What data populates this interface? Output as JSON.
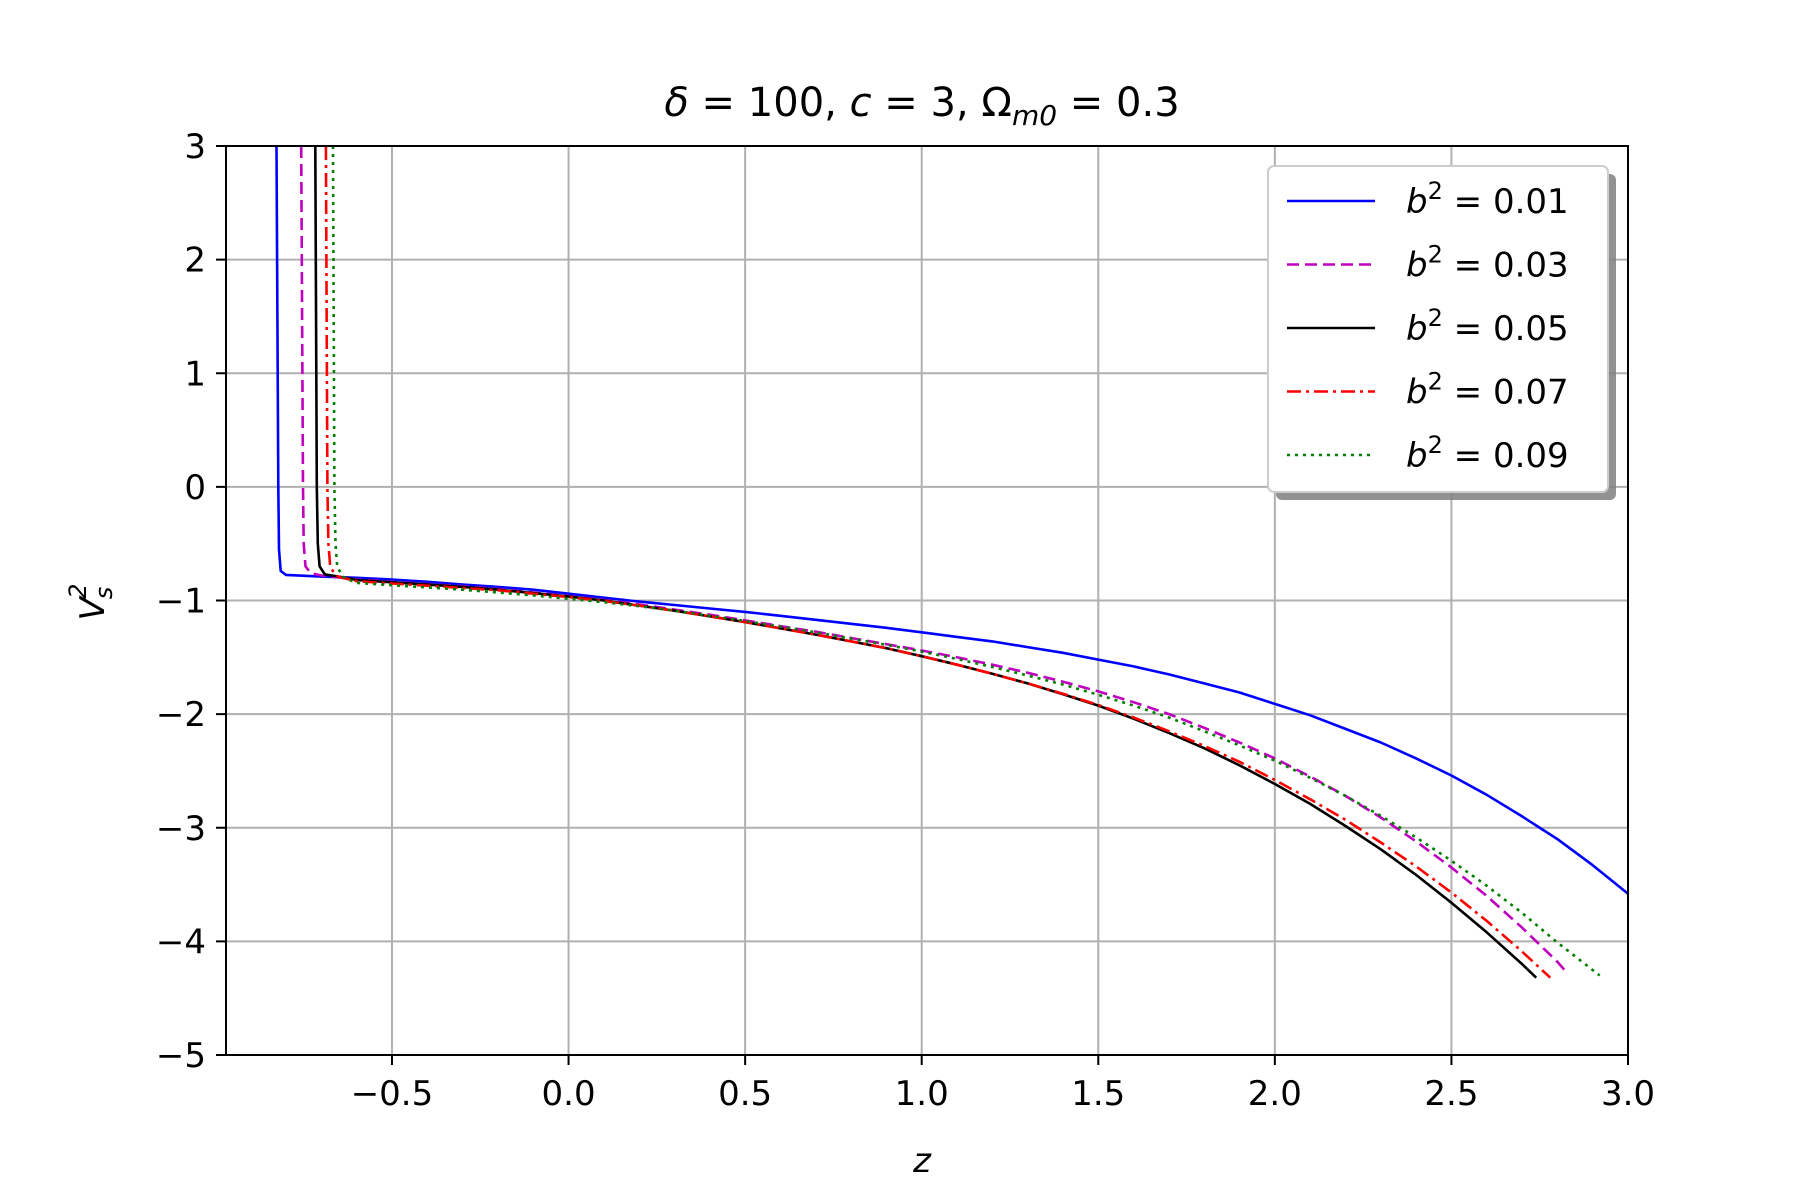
{
  "chart_data": {
    "type": "line",
    "title": "δ = 100, c = 3, Ω_m0 = 0.3",
    "title_parts": {
      "delta": "δ",
      "delta_eq": " = 100, ",
      "c": "c",
      "c_eq": " = 3, ",
      "omega": "Ω",
      "omega_sub": "m0",
      "omega_eq": " = 0.3"
    },
    "xlabel": "z",
    "ylabel": "V_s^2",
    "ylabel_parts": {
      "base": "V",
      "sub": "s",
      "sup": "2"
    },
    "xlim": [
      -0.97,
      3.0
    ],
    "ylim": [
      -5,
      3
    ],
    "xticks": [
      -0.5,
      0.0,
      0.5,
      1.0,
      1.5,
      2.0,
      2.5,
      3.0
    ],
    "xtick_labels": [
      "−0.5",
      "0.0",
      "0.5",
      "1.0",
      "1.5",
      "2.0",
      "2.5",
      "3.0"
    ],
    "yticks": [
      -5,
      -4,
      -3,
      -2,
      -1,
      0,
      1,
      2,
      3
    ],
    "ytick_labels": [
      "−5",
      "−4",
      "−3",
      "−2",
      "−1",
      "0",
      "1",
      "2",
      "3"
    ],
    "grid": true,
    "legend_position": "top-right",
    "series": [
      {
        "name": "b² = 0.01",
        "legend_prefix": "b",
        "legend_sup": "2",
        "legend_value": " = 0.01",
        "color": "#0000ff",
        "dash": "solid",
        "x": [
          -0.827,
          -0.822,
          -0.82,
          -0.815,
          -0.8,
          -0.7,
          -0.6,
          -0.5,
          -0.4,
          -0.3,
          -0.2,
          -0.1,
          0.0,
          0.1,
          0.2,
          0.3,
          0.4,
          0.5,
          0.6,
          0.7,
          0.8,
          0.9,
          1.0,
          1.1,
          1.2,
          1.3,
          1.4,
          1.5,
          1.6,
          1.7,
          1.8,
          1.9,
          2.0,
          2.1,
          2.2,
          2.3,
          2.4,
          2.5,
          2.6,
          2.7,
          2.8,
          2.9,
          3.0
        ],
        "y": [
          3.0,
          0.0,
          -0.55,
          -0.74,
          -0.775,
          -0.79,
          -0.8,
          -0.815,
          -0.835,
          -0.86,
          -0.88,
          -0.905,
          -0.94,
          -0.975,
          -1.01,
          -1.04,
          -1.07,
          -1.1,
          -1.135,
          -1.17,
          -1.205,
          -1.24,
          -1.28,
          -1.32,
          -1.36,
          -1.41,
          -1.46,
          -1.52,
          -1.58,
          -1.65,
          -1.73,
          -1.81,
          -1.91,
          -2.01,
          -2.13,
          -2.25,
          -2.39,
          -2.54,
          -2.71,
          -2.9,
          -3.1,
          -3.33,
          -3.58
        ]
      },
      {
        "name": "b² = 0.03",
        "legend_prefix": "b",
        "legend_sup": "2",
        "legend_value": " = 0.03",
        "color": "#bf00bf",
        "dash": "dashed",
        "x": [
          -0.757,
          -0.752,
          -0.75,
          -0.745,
          -0.73,
          -0.7,
          -0.6,
          -0.5,
          -0.4,
          -0.3,
          -0.2,
          -0.1,
          0.0,
          0.1,
          0.2,
          0.3,
          0.4,
          0.5,
          0.6,
          0.7,
          0.8,
          0.9,
          1.0,
          1.1,
          1.2,
          1.3,
          1.4,
          1.5,
          1.6,
          1.7,
          1.8,
          1.9,
          2.0,
          2.1,
          2.2,
          2.3,
          2.4,
          2.5,
          2.6,
          2.7,
          2.8,
          2.82
        ],
        "y": [
          3.0,
          0.0,
          -0.5,
          -0.7,
          -0.76,
          -0.78,
          -0.815,
          -0.835,
          -0.855,
          -0.875,
          -0.9,
          -0.93,
          -0.96,
          -0.995,
          -1.035,
          -1.08,
          -1.125,
          -1.175,
          -1.225,
          -1.275,
          -1.33,
          -1.385,
          -1.44,
          -1.5,
          -1.565,
          -1.635,
          -1.715,
          -1.8,
          -1.895,
          -2.0,
          -2.12,
          -2.25,
          -2.39,
          -2.55,
          -2.72,
          -2.91,
          -3.12,
          -3.35,
          -3.6,
          -3.88,
          -4.18,
          -4.25
        ]
      },
      {
        "name": "b² = 0.05",
        "legend_prefix": "b",
        "legend_sup": "2",
        "legend_value": " = 0.05",
        "color": "#000000",
        "dash": "solid",
        "x": [
          -0.717,
          -0.713,
          -0.71,
          -0.705,
          -0.69,
          -0.65,
          -0.6,
          -0.5,
          -0.4,
          -0.3,
          -0.2,
          -0.1,
          0.0,
          0.1,
          0.2,
          0.3,
          0.4,
          0.5,
          0.6,
          0.7,
          0.8,
          0.9,
          1.0,
          1.1,
          1.2,
          1.3,
          1.4,
          1.5,
          1.6,
          1.7,
          1.8,
          1.9,
          2.0,
          2.1,
          2.2,
          2.3,
          2.4,
          2.5,
          2.6,
          2.7,
          2.74
        ],
        "y": [
          3.0,
          0.0,
          -0.5,
          -0.7,
          -0.77,
          -0.79,
          -0.82,
          -0.84,
          -0.86,
          -0.88,
          -0.905,
          -0.935,
          -0.965,
          -1.0,
          -1.045,
          -1.09,
          -1.14,
          -1.19,
          -1.245,
          -1.3,
          -1.36,
          -1.42,
          -1.49,
          -1.565,
          -1.645,
          -1.73,
          -1.825,
          -1.925,
          -2.04,
          -2.165,
          -2.3,
          -2.45,
          -2.615,
          -2.79,
          -2.985,
          -3.19,
          -3.415,
          -3.66,
          -3.92,
          -4.2,
          -4.32
        ]
      },
      {
        "name": "b² = 0.07",
        "legend_prefix": "b",
        "legend_sup": "2",
        "legend_value": " = 0.07",
        "color": "#ff0000",
        "dash": "dashdot",
        "x": [
          -0.687,
          -0.683,
          -0.68,
          -0.675,
          -0.66,
          -0.64,
          -0.6,
          -0.5,
          -0.4,
          -0.3,
          -0.2,
          -0.1,
          0.0,
          0.1,
          0.2,
          0.3,
          0.4,
          0.5,
          0.6,
          0.7,
          0.8,
          0.9,
          1.0,
          1.1,
          1.2,
          1.3,
          1.4,
          1.5,
          1.6,
          1.7,
          1.8,
          1.9,
          2.0,
          2.1,
          2.2,
          2.3,
          2.4,
          2.5,
          2.6,
          2.7,
          2.78
        ],
        "y": [
          3.0,
          0.0,
          -0.5,
          -0.7,
          -0.78,
          -0.8,
          -0.83,
          -0.85,
          -0.87,
          -0.89,
          -0.91,
          -0.94,
          -0.97,
          -1.005,
          -1.045,
          -1.09,
          -1.14,
          -1.19,
          -1.245,
          -1.3,
          -1.36,
          -1.42,
          -1.49,
          -1.565,
          -1.645,
          -1.73,
          -1.82,
          -1.92,
          -2.03,
          -2.15,
          -2.28,
          -2.42,
          -2.58,
          -2.75,
          -2.93,
          -3.13,
          -3.34,
          -3.57,
          -3.82,
          -4.09,
          -4.32
        ]
      },
      {
        "name": "b² = 0.09",
        "legend_prefix": "b",
        "legend_sup": "2",
        "legend_value": " = 0.09",
        "color": "#008000",
        "dash": "dotted",
        "x": [
          -0.667,
          -0.663,
          -0.66,
          -0.655,
          -0.64,
          -0.62,
          -0.6,
          -0.5,
          -0.4,
          -0.3,
          -0.2,
          -0.1,
          0.0,
          0.1,
          0.2,
          0.3,
          0.4,
          0.5,
          0.6,
          0.7,
          0.8,
          0.9,
          1.0,
          1.1,
          1.2,
          1.3,
          1.4,
          1.5,
          1.6,
          1.7,
          1.8,
          1.9,
          2.0,
          2.1,
          2.2,
          2.3,
          2.4,
          2.5,
          2.6,
          2.7,
          2.8,
          2.92
        ],
        "y": [
          3.0,
          0.0,
          -0.5,
          -0.7,
          -0.79,
          -0.82,
          -0.845,
          -0.865,
          -0.885,
          -0.905,
          -0.93,
          -0.955,
          -0.985,
          -1.015,
          -1.05,
          -1.09,
          -1.135,
          -1.18,
          -1.23,
          -1.28,
          -1.335,
          -1.39,
          -1.45,
          -1.515,
          -1.585,
          -1.66,
          -1.74,
          -1.83,
          -1.925,
          -2.03,
          -2.15,
          -2.275,
          -2.41,
          -2.56,
          -2.72,
          -2.895,
          -3.085,
          -3.29,
          -3.51,
          -3.75,
          -4.01,
          -4.3
        ]
      }
    ]
  }
}
